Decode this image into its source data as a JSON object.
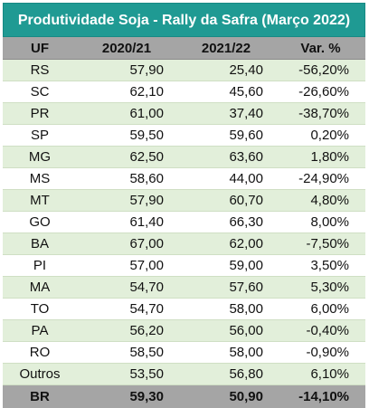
{
  "title": "Produtividade Soja - Rally da Safra (Março 2022)",
  "headers": [
    "UF",
    "2020/21",
    "2021/22",
    "Var. %"
  ],
  "rows": [
    [
      "RS",
      "57,90",
      "25,40",
      "-56,20%"
    ],
    [
      "SC",
      "62,10",
      "45,60",
      "-26,60%"
    ],
    [
      "PR",
      "61,00",
      "37,40",
      "-38,70%"
    ],
    [
      "SP",
      "59,50",
      "59,60",
      "0,20%"
    ],
    [
      "MG",
      "62,50",
      "63,60",
      "1,80%"
    ],
    [
      "MS",
      "58,60",
      "44,00",
      "-24,90%"
    ],
    [
      "MT",
      "57,90",
      "60,70",
      "4,80%"
    ],
    [
      "GO",
      "61,40",
      "66,30",
      "8,00%"
    ],
    [
      "BA",
      "67,00",
      "62,00",
      "-7,50%"
    ],
    [
      "PI",
      "57,00",
      "59,00",
      "3,50%"
    ],
    [
      "MA",
      "54,70",
      "57,60",
      "5,30%"
    ],
    [
      "TO",
      "54,70",
      "58,00",
      "6,00%"
    ],
    [
      "PA",
      "56,20",
      "56,00",
      "-0,40%"
    ],
    [
      "RO",
      "58,50",
      "58,00",
      "-0,90%"
    ],
    [
      "Outros",
      "53,50",
      "56,80",
      "6,10%"
    ]
  ],
  "total": [
    "BR",
    "59,30",
    "50,90",
    "-14,10%"
  ],
  "colors": {
    "title_bg": "#1f9a93",
    "header_bg": "#a5a5a5",
    "stripe_bg": "#e2efda"
  }
}
